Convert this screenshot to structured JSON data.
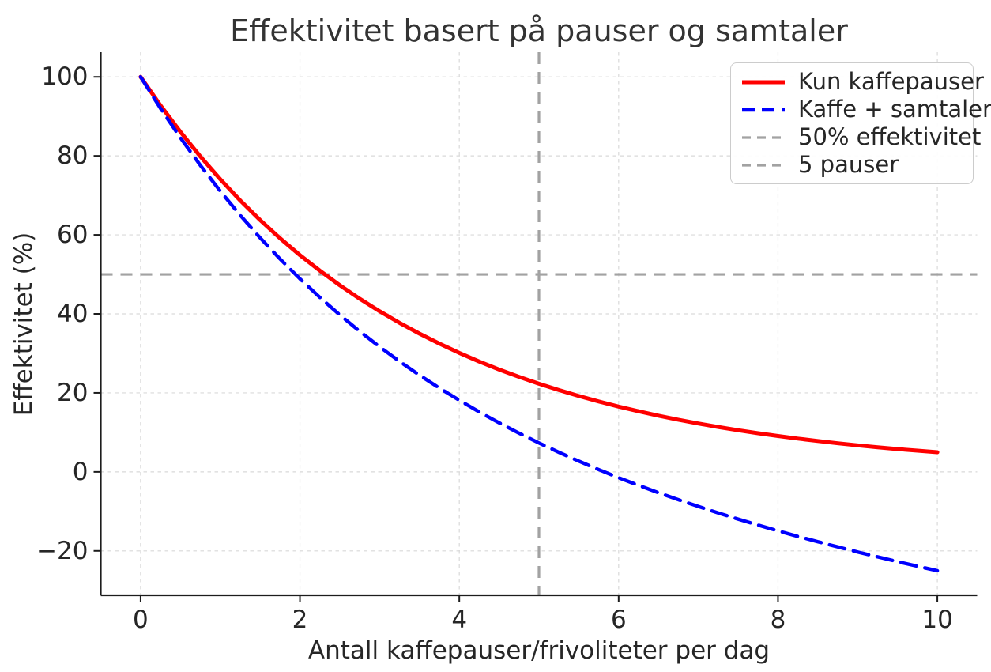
{
  "figure": {
    "title": "Effektivitet basert på pauser og samtaler",
    "xlabel": "Antall kaffepauser/frivoliteter per dag",
    "ylabel": "Effektivitet (%)"
  },
  "chart_data": {
    "type": "line",
    "title": "Effektivitet basert på pauser og samtaler",
    "xlabel": "Antall kaffepauser/frivoliteter per dag",
    "ylabel": "Effektivitet (%)",
    "xlim": [
      -0.5,
      10.5
    ],
    "ylim": [
      -31.25,
      106.25
    ],
    "xticks": [
      0,
      2,
      4,
      6,
      8,
      10
    ],
    "yticks": [
      -20,
      0,
      20,
      40,
      60,
      80,
      100
    ],
    "grid": true,
    "grid_style": "dashed",
    "legend_position": "upper right",
    "x": [
      0,
      0.25,
      0.5,
      0.75,
      1,
      1.25,
      1.5,
      1.75,
      2,
      2.25,
      2.5,
      2.75,
      3,
      3.25,
      3.5,
      3.75,
      4,
      4.25,
      4.5,
      4.75,
      5,
      5.25,
      5.5,
      5.75,
      6,
      6.25,
      6.5,
      6.75,
      7,
      7.25,
      7.5,
      7.75,
      8,
      8.25,
      8.5,
      8.75,
      9,
      9.25,
      9.5,
      9.75,
      10
    ],
    "series": [
      {
        "name": "Kun kaffepauser",
        "color": "#ff0000",
        "style": "solid",
        "linewidth": 5,
        "values": [
          100,
          92.77,
          86.07,
          79.85,
          74.08,
          68.73,
          63.76,
          59.16,
          54.88,
          50.92,
          47.24,
          43.82,
          40.66,
          37.72,
          34.99,
          32.47,
          30.12,
          27.94,
          25.92,
          24.05,
          22.31,
          20.7,
          19.21,
          17.82,
          16.53,
          15.34,
          14.23,
          13.2,
          12.25,
          11.36,
          10.54,
          9.78,
          9.07,
          8.42,
          7.81,
          7.24,
          6.72,
          6.23,
          5.78,
          5.37,
          4.98
        ]
      },
      {
        "name": "Kaffe + samtaler",
        "color": "#0000ff",
        "style": "dashed",
        "linewidth": 4.4,
        "values": [
          100,
          92.02,
          84.57,
          77.6,
          71.08,
          64.98,
          59.26,
          53.91,
          48.88,
          44.17,
          39.74,
          35.57,
          31.66,
          27.97,
          24.49,
          21.22,
          18.12,
          15.19,
          12.42,
          9.8,
          7.31,
          4.95,
          2.71,
          0.57,
          -1.47,
          -3.41,
          -5.27,
          -7.05,
          -8.75,
          -10.39,
          -11.96,
          -13.47,
          -14.93,
          -16.33,
          -17.69,
          -19.01,
          -20.28,
          -21.52,
          -22.72,
          -23.88,
          -25.02
        ]
      }
    ],
    "reference_lines": [
      {
        "name": "50% effektivitet",
        "orientation": "horizontal",
        "value": 50,
        "color": "#a2a2a2",
        "style": "dashed"
      },
      {
        "name": "5 pauser",
        "orientation": "vertical",
        "value": 5,
        "color": "#a2a2a2",
        "style": "dashed"
      }
    ],
    "legend": [
      "Kun kaffepauser",
      "Kaffe + samtaler",
      "50% effektivitet",
      "5 pauser"
    ]
  },
  "colors": {
    "background": "#ffffff",
    "grid": "#d9d9d9",
    "spine": "#1c1c1c",
    "title_text": "#333333",
    "tick_text": "#262626",
    "legend_border": "#cccccc"
  }
}
